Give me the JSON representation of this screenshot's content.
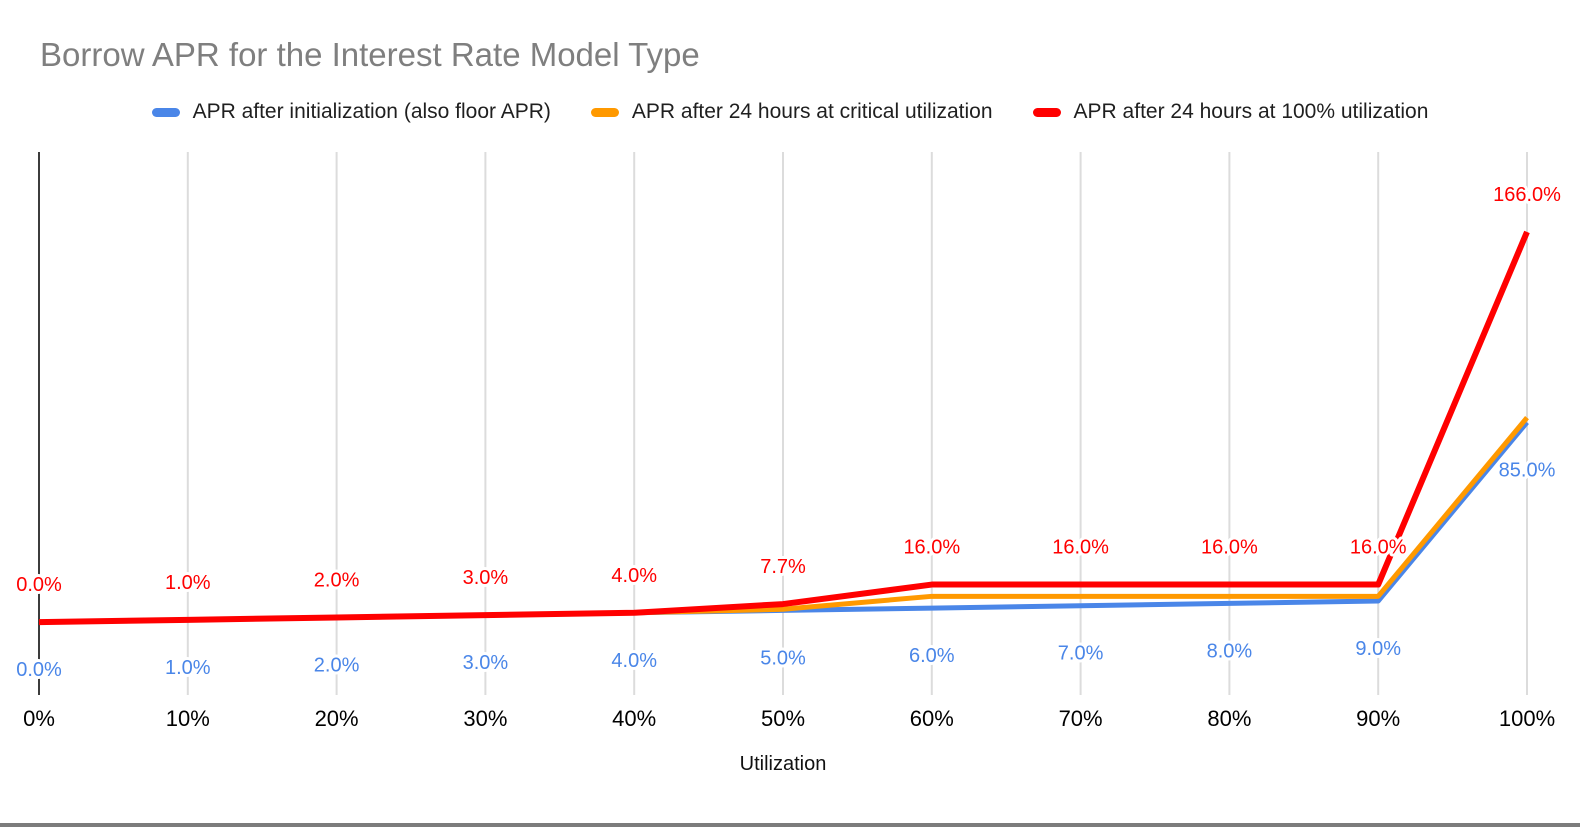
{
  "chart_data": {
    "type": "line",
    "title": "Borrow APR for the Interest Rate Model Type",
    "xlabel": "Utilization",
    "legend_position": "top",
    "grid": "vertical-only",
    "x_ticks_pct": [
      0,
      10,
      20,
      30,
      40,
      50,
      60,
      70,
      80,
      90,
      100
    ],
    "x_tick_labels": [
      "0%",
      "10%",
      "20%",
      "30%",
      "40%",
      "50%",
      "60%",
      "70%",
      "80%",
      "90%",
      "100%"
    ],
    "ylim_est": [
      -28,
      200
    ],
    "series": [
      {
        "name": "APR after initialization (also floor APR)",
        "color": "#4a86e8",
        "values": [
          0,
          1,
          2,
          3,
          4,
          5,
          6,
          7,
          8,
          9,
          85
        ],
        "labels": [
          "0.0%",
          "1.0%",
          "2.0%",
          "3.0%",
          "4.0%",
          "5.0%",
          "6.0%",
          "7.0%",
          "8.0%",
          "9.0%",
          "85.0%"
        ],
        "label_placement": "below"
      },
      {
        "name": "APR after 24 hours at critical utilization",
        "color": "#ff9900",
        "values": [
          0,
          1,
          2,
          3,
          4,
          5.5,
          11,
          11,
          11,
          11,
          87
        ],
        "values_estimated": true,
        "labels": null,
        "label_placement": "none"
      },
      {
        "name": "APR after 24 hours at 100% utilization",
        "color": "#ff0000",
        "values": [
          0,
          1,
          2,
          3,
          4,
          7.7,
          16,
          16,
          16,
          16,
          166
        ],
        "labels": [
          "0.0%",
          "1.0%",
          "2.0%",
          "3.0%",
          "4.0%",
          "7.7%",
          "16.0%",
          "16.0%",
          "16.0%",
          "16.0%",
          "166.0%"
        ],
        "label_placement": "above"
      }
    ],
    "style": {
      "axis_color": "#3c3c3c",
      "grid_color": "#dcdcdc",
      "title_color": "#7f7f7f",
      "tick_label_color": "#000000",
      "legend_text_color": "#1f1f1f",
      "background": "#ffffff",
      "bottom_border_color": "#7c7c7c"
    }
  }
}
